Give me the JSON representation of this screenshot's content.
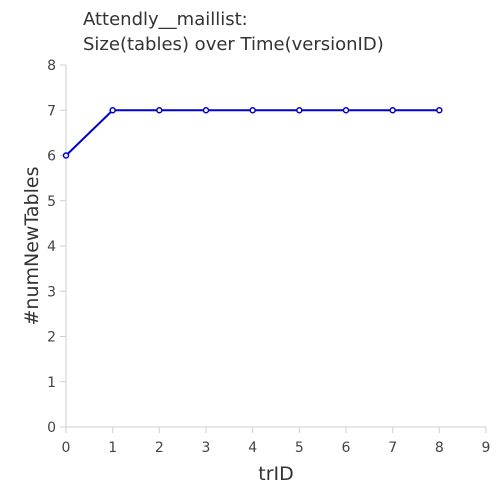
{
  "chart_data": {
    "type": "line",
    "title_lines": [
      "Attendly__maillist:",
      "Size(tables) over Time(versionID)"
    ],
    "xlabel": "trID",
    "ylabel": "#numNewTables",
    "xlim": [
      0,
      9
    ],
    "ylim": [
      0,
      8
    ],
    "x_ticks": [
      0,
      1,
      2,
      3,
      4,
      5,
      6,
      7,
      8,
      9
    ],
    "y_ticks": [
      0,
      1,
      2,
      3,
      4,
      5,
      6,
      7,
      8
    ],
    "grid": false,
    "series": [
      {
        "name": "numNewTables",
        "color": "#0000cc",
        "x": [
          0,
          1,
          2,
          3,
          4,
          5,
          6,
          7,
          8
        ],
        "y": [
          6,
          7,
          7,
          7,
          7,
          7,
          7,
          7,
          7
        ]
      }
    ]
  }
}
